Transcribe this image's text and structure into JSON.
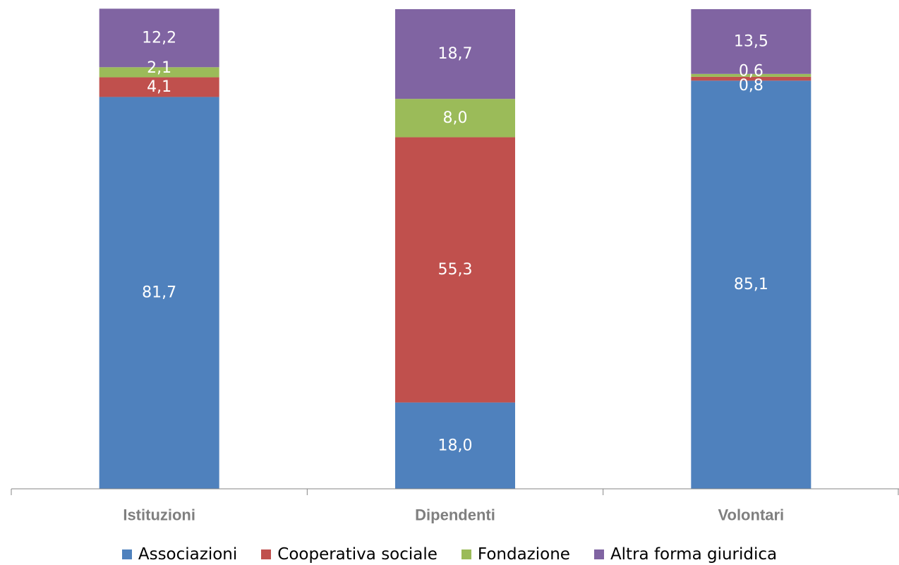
{
  "chart_data": {
    "type": "bar",
    "stacked": true,
    "normalized_percent": true,
    "categories": [
      "Istituzioni",
      "Dipendenti",
      "Volontari"
    ],
    "series": [
      {
        "name": "Associazioni",
        "values": [
          81.7,
          18.0,
          85.1
        ],
        "labels": [
          "81,7",
          "18,0",
          "85,1"
        ],
        "color": "#4F81BD"
      },
      {
        "name": "Cooperativa sociale",
        "values": [
          4.1,
          55.3,
          0.8
        ],
        "labels": [
          "4,1",
          "55,3",
          "0,8"
        ],
        "color": "#C0504D"
      },
      {
        "name": "Fondazione",
        "values": [
          2.1,
          8.0,
          0.6
        ],
        "labels": [
          "2,1",
          "8,0",
          "0,6"
        ],
        "color": "#9BBB59"
      },
      {
        "name": "Altra forma giuridica",
        "values": [
          12.2,
          18.7,
          13.5
        ],
        "labels": [
          "12,2",
          "18,7",
          "13,5"
        ],
        "color": "#8064A2"
      }
    ],
    "ylim": [
      0,
      100
    ],
    "grid": false,
    "legend_position": "bottom"
  }
}
